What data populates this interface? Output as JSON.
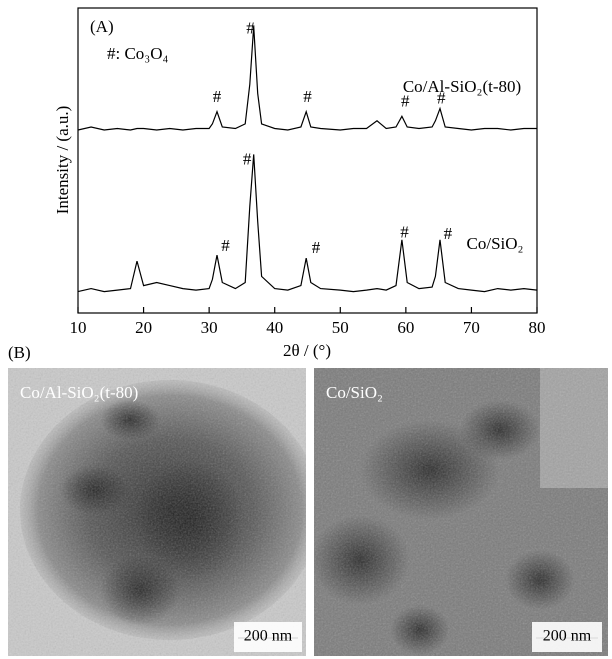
{
  "chart_data": {
    "type": "line",
    "panel_label": "(A)",
    "legend_note": "#: Co₃O₄",
    "xlabel": "2θ / (°)",
    "ylabel": "Intensity / (a.u.)",
    "xlim": [
      10,
      80
    ],
    "xticks": [
      10,
      20,
      30,
      40,
      50,
      60,
      70,
      80
    ],
    "ylim": [
      0,
      100
    ],
    "x": [
      10,
      12,
      14,
      16,
      18,
      19,
      20,
      22,
      24,
      26,
      28,
      30,
      30.5,
      31.2,
      32,
      34,
      35.5,
      36.2,
      36.8,
      37.4,
      38,
      40,
      42,
      44,
      44.8,
      45.5,
      47,
      50,
      52,
      54,
      55.6,
      57,
      58.5,
      59.4,
      60.2,
      62,
      64,
      64.5,
      65.2,
      66,
      68,
      70,
      72,
      74,
      76,
      78,
      80
    ],
    "series": [
      {
        "name": "Co/Al-SiO₂(t-80)",
        "color": "#000000",
        "values": [
          60,
          61,
          60,
          60.5,
          60,
          60.5,
          60.5,
          60,
          60.5,
          60,
          60.5,
          60.5,
          62,
          66,
          61,
          60.5,
          62,
          75,
          94,
          72,
          62,
          60.5,
          60,
          61,
          66,
          61,
          60.5,
          60,
          60.5,
          60.5,
          63,
          60.5,
          61,
          64.5,
          61,
          60.5,
          61,
          63,
          67,
          61,
          60.5,
          60,
          60.5,
          60.5,
          60,
          60.5,
          60.5
        ],
        "annotations": [
          {
            "text": "#",
            "x": 31.2,
            "y": 70.5
          },
          {
            "text": "#",
            "x": 36.3,
            "y": 93
          },
          {
            "text": "#",
            "x": 45,
            "y": 70.5
          },
          {
            "text": "#",
            "x": 59.9,
            "y": 69
          },
          {
            "text": "#",
            "x": 65.4,
            "y": 70
          }
        ]
      },
      {
        "name": "Co/SiO₂",
        "color": "#000000",
        "values": [
          7,
          8,
          7,
          7.5,
          8,
          17,
          9,
          10,
          9,
          8,
          7.5,
          8,
          11,
          19,
          10,
          8,
          10,
          35,
          52,
          30,
          12,
          8,
          7.5,
          9,
          18,
          10,
          8,
          7.5,
          7,
          7.5,
          8,
          7.5,
          9,
          24,
          10,
          8,
          8.5,
          12,
          24,
          10,
          8,
          7.5,
          7,
          8,
          7.5,
          8,
          7.5
        ],
        "annotations": [
          {
            "text": "#",
            "x": 35.8,
            "y": 50
          },
          {
            "text": "#",
            "x": 32.5,
            "y": 21.6
          },
          {
            "text": "#",
            "x": 46.3,
            "y": 21
          },
          {
            "text": "#",
            "x": 59.8,
            "y": 26
          },
          {
            "text": "#",
            "x": 66.4,
            "y": 25.6
          }
        ]
      }
    ]
  },
  "images": {
    "panel_label": "(B)",
    "items": [
      {
        "label": "Co/Al-SiO₂(t-80)",
        "scale_bar": "200 nm"
      },
      {
        "label": "Co/SiO₂",
        "scale_bar": "200 nm"
      }
    ]
  }
}
